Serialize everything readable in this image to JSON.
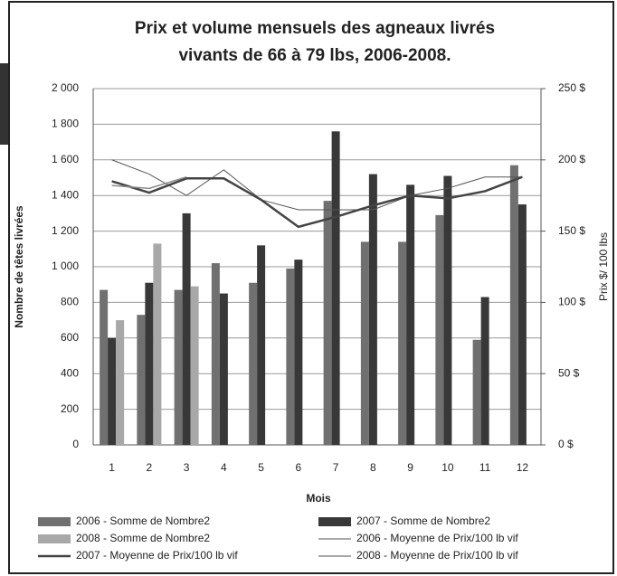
{
  "chart_data": {
    "type": "bar_line",
    "title": [
      "Prix et volume mensuels des agneaux livrés",
      "vivants de 66 à 79 lbs, 2006-2008."
    ],
    "xlabel": "Mois",
    "ylabel": "Nombre de têtes livrées",
    "y2label": "Prix $/ 100 lbs",
    "categories": [
      "1",
      "2",
      "3",
      "4",
      "5",
      "6",
      "7",
      "8",
      "9",
      "10",
      "11",
      "12"
    ],
    "ylim": [
      0,
      2000
    ],
    "yticks": [
      0,
      200,
      400,
      600,
      800,
      {
        "value": 1000,
        "label": "1 000"
      },
      {
        "value": 1200,
        "label": "1 200"
      },
      {
        "value": 1400,
        "label": "1 400"
      },
      {
        "value": 1600,
        "label": "1 600"
      },
      {
        "value": 1800,
        "label": "1 800"
      },
      {
        "value": 2000,
        "label": "2 000"
      }
    ],
    "y2lim": [
      0,
      250
    ],
    "y2ticks": [
      {
        "value": 0,
        "label": "0 $"
      },
      {
        "value": 50,
        "label": "50 $"
      },
      {
        "value": 100,
        "label": "100 $"
      },
      {
        "value": 150,
        "label": "150 $"
      },
      {
        "value": 200,
        "label": "200 $"
      },
      {
        "value": 250,
        "label": "250 $"
      }
    ],
    "grid": true,
    "series": [
      {
        "name": "2006 - Somme de Nombre2",
        "kind": "bar",
        "color": "#707070",
        "values": [
          870,
          730,
          870,
          1020,
          910,
          990,
          1370,
          1140,
          1140,
          1290,
          590,
          1570
        ]
      },
      {
        "name": "2007 - Somme de Nombre2",
        "kind": "bar",
        "color": "#383838",
        "values": [
          600,
          910,
          1300,
          850,
          1120,
          1040,
          1760,
          1520,
          1460,
          1510,
          830,
          1350
        ]
      },
      {
        "name": "2008 - Somme de Nombre2",
        "kind": "bar",
        "color": "#a8a8a8",
        "values": [
          700,
          1130,
          890,
          null,
          null,
          null,
          null,
          null,
          null,
          null,
          null,
          null
        ]
      },
      {
        "name": "2006 - Moyenne de Prix/100 lb vif",
        "kind": "line",
        "axis": "y2",
        "color": "#555555",
        "width": 1,
        "values": [
          200,
          190,
          175,
          193,
          172,
          165,
          165,
          165,
          175,
          180,
          188,
          188
        ]
      },
      {
        "name": "2007 - Moyenne de Prix/100 lb vif",
        "kind": "line",
        "axis": "y2",
        "color": "#444444",
        "width": 2.5,
        "values": [
          185,
          177,
          187,
          187,
          172,
          153,
          160,
          168,
          175,
          173,
          178,
          188
        ]
      },
      {
        "name": "2008 - Moyenne de Prix/100 lb vif",
        "kind": "line",
        "axis": "y2",
        "color": "#8a8a8a",
        "width": 1.5,
        "values": [
          182,
          180,
          188,
          null,
          null,
          null,
          null,
          null,
          null,
          null,
          null,
          null
        ]
      }
    ]
  }
}
